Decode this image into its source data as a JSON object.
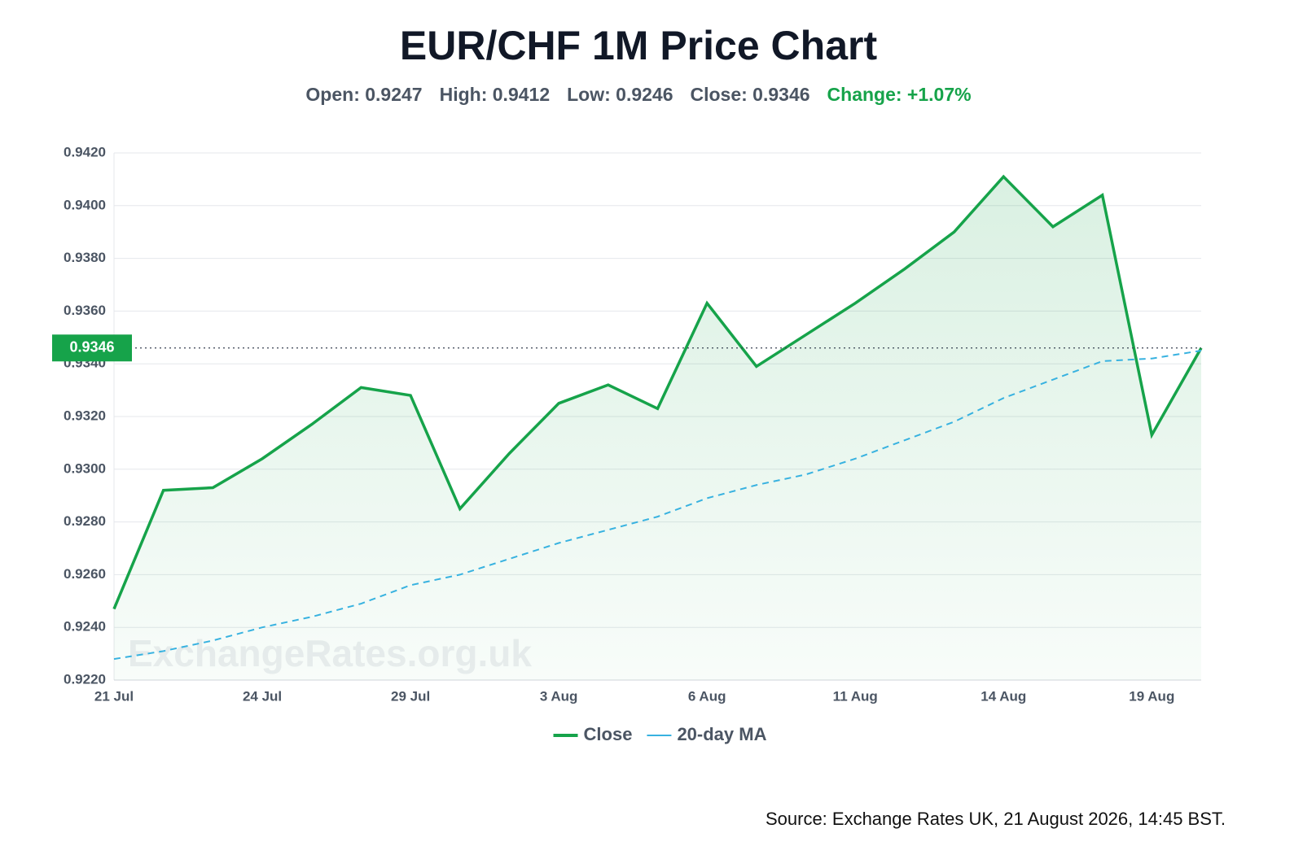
{
  "chart_data": {
    "type": "line",
    "title": "EUR/CHF 1M Price Chart",
    "stats": [
      {
        "text": "Open: 0.9247",
        "color": "#4b5563"
      },
      {
        "text": "High: 0.9412",
        "color": "#4b5563"
      },
      {
        "text": "Low: 0.9246",
        "color": "#4b5563"
      },
      {
        "text": "Close: 0.9346",
        "color": "#4b5563"
      },
      {
        "text": "Change: +1.07%",
        "color": "#16a34a"
      }
    ],
    "categories": [
      "21 Jul",
      null,
      null,
      "24 Jul",
      null,
      null,
      "29 Jul",
      null,
      null,
      "3 Aug",
      null,
      null,
      "6 Aug",
      null,
      null,
      "11 Aug",
      null,
      null,
      "14 Aug",
      null,
      null,
      "19 Aug",
      null
    ],
    "series": [
      {
        "name": "Close",
        "color": "#16a34a",
        "dashed": false,
        "fill": true,
        "values": [
          0.9247,
          0.9292,
          0.9293,
          0.9304,
          0.9317,
          0.9331,
          0.9328,
          0.9285,
          0.9306,
          0.9325,
          0.9332,
          0.9323,
          0.9363,
          0.9339,
          0.9351,
          0.9363,
          0.9376,
          0.939,
          0.9411,
          0.9392,
          0.9404,
          0.9313,
          0.9346
        ]
      },
      {
        "name": "20-day MA",
        "color": "#38b2e0",
        "dashed": true,
        "fill": false,
        "values": [
          0.9228,
          0.9231,
          0.9235,
          0.924,
          0.9244,
          0.9249,
          0.9256,
          0.926,
          0.9266,
          0.9272,
          0.9277,
          0.9282,
          0.9289,
          0.9294,
          0.9298,
          0.9304,
          0.9311,
          0.9318,
          0.9327,
          0.9334,
          0.9341,
          0.9342,
          0.9345
        ]
      }
    ],
    "current_price": 0.9346,
    "ylim": [
      0.922,
      0.942
    ],
    "yticks": [
      {
        "value": 0.922,
        "label": "0.9220"
      },
      {
        "value": 0.924,
        "label": "0.9240"
      },
      {
        "value": 0.926,
        "label": "0.9260"
      },
      {
        "value": 0.928,
        "label": "0.9280"
      },
      {
        "value": 0.93,
        "label": "0.9300"
      },
      {
        "value": 0.932,
        "label": "0.9320"
      },
      {
        "value": 0.934,
        "label": "0.9340"
      },
      {
        "value": 0.936,
        "label": "0.9360"
      },
      {
        "value": 0.938,
        "label": "0.9380"
      },
      {
        "value": 0.94,
        "label": "0.9400"
      },
      {
        "value": 0.942,
        "label": "0.9420"
      }
    ],
    "grid": true,
    "legend": "bottom",
    "watermark": "ExchangeRates.org.uk",
    "source": "Source: Exchange Rates UK, 21 August 2026, 14:45 BST."
  }
}
